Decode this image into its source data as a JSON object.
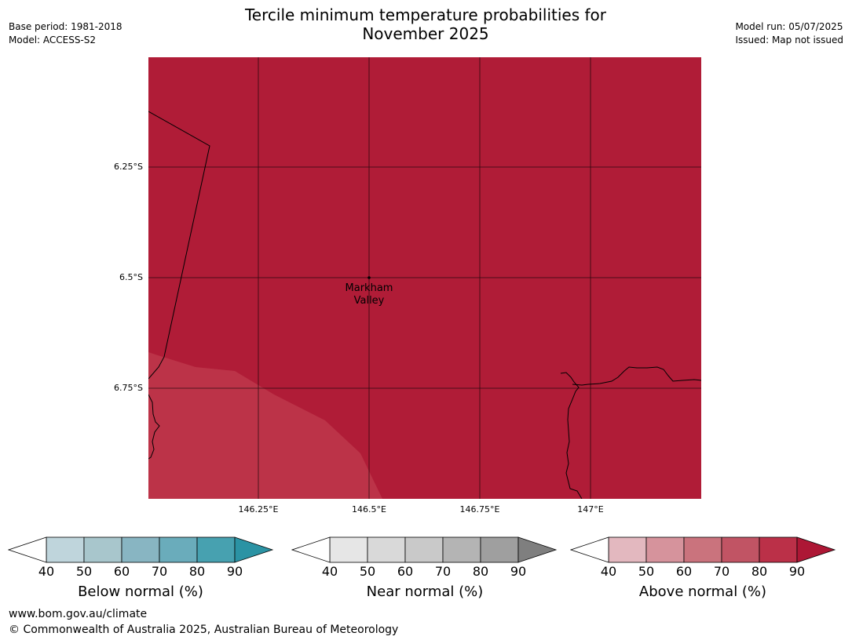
{
  "header": {
    "title_line1": "Tercile minimum temperature probabilities for",
    "title_line2": "November 2025",
    "base_period": "Base period: 1981-2018",
    "model": "Model: ACCESS-S2",
    "model_run": "Model run: 05/07/2025",
    "issued": "Issued: Map not issued"
  },
  "map": {
    "lat_labels": [
      "6.25°S",
      "6.5°S",
      "6.75°S"
    ],
    "lon_labels": [
      "146.25°E",
      "146.5°E",
      "146.75°E",
      "147°E"
    ],
    "place_name_line1": "Markham",
    "place_name_line2": "Valley",
    "fill_color_main": "#b01c37",
    "fill_color_light": "#bc3348"
  },
  "legends": {
    "below": {
      "label": "Below normal (%)",
      "ticks": [
        "40",
        "50",
        "60",
        "70",
        "80",
        "90"
      ],
      "colors": [
        "#bfd5dc",
        "#a8c6cc",
        "#88b5c2",
        "#6aacbb",
        "#47a1b0",
        "#2b93a4"
      ]
    },
    "near": {
      "label": "Near normal (%)",
      "ticks": [
        "40",
        "50",
        "60",
        "70",
        "80",
        "90"
      ],
      "colors": [
        "#e6e6e6",
        "#d9d9d9",
        "#c9c9c9",
        "#b4b4b4",
        "#9f9f9f",
        "#7f7f7f"
      ]
    },
    "above": {
      "label": "Above normal (%)",
      "ticks": [
        "40",
        "50",
        "60",
        "70",
        "80",
        "90"
      ],
      "colors": [
        "#e3b8bf",
        "#d6939c",
        "#ca737d",
        "#c15464",
        "#bb3048",
        "#ad1735"
      ]
    }
  },
  "footer": {
    "url": "www.bom.gov.au/climate",
    "copyright": "© Commonwealth of Australia 2025, Australian Bureau of Meteorology"
  }
}
